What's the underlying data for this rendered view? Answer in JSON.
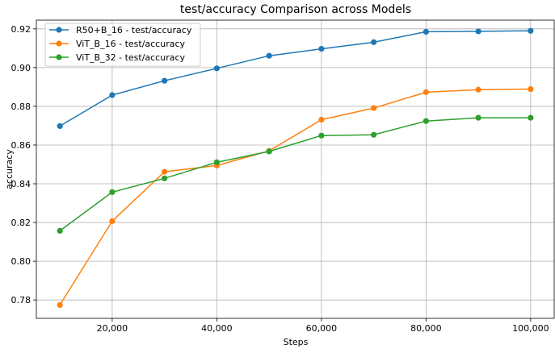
{
  "chart_data": {
    "type": "line",
    "title": "test/accuracy Comparison across Models",
    "xlabel": "Steps",
    "ylabel": "accuracy",
    "x": [
      10000,
      20000,
      30000,
      40000,
      50000,
      60000,
      70000,
      80000,
      90000,
      100000
    ],
    "xlim": [
      5500,
      104500
    ],
    "ylim": [
      0.7705,
      0.9245
    ],
    "xticks": [
      20000,
      40000,
      60000,
      80000,
      100000
    ],
    "xtick_labels": [
      "20,000",
      "40,000",
      "60,000",
      "80,000",
      "100,000"
    ],
    "yticks": [
      0.78,
      0.8,
      0.82,
      0.84,
      0.86,
      0.88,
      0.9,
      0.92
    ],
    "ytick_labels": [
      "0.78",
      "0.80",
      "0.82",
      "0.84",
      "0.86",
      "0.88",
      "0.90",
      "0.92"
    ],
    "grid": true,
    "legend_position": "top-left",
    "series": [
      {
        "name": "R50+B_16 - test/accuracy",
        "color": "#1f77b4",
        "values": [
          0.8698,
          0.8858,
          0.8932,
          0.8996,
          0.9061,
          0.9097,
          0.9131,
          0.9185,
          0.9187,
          0.919
        ]
      },
      {
        "name": "ViT_B_16 - test/accuracy",
        "color": "#ff7f0e",
        "values": [
          0.7774,
          0.8207,
          0.8462,
          0.8494,
          0.857,
          0.8731,
          0.8791,
          0.8873,
          0.8886,
          0.8889
        ]
      },
      {
        "name": "ViT_B_32 - test/accuracy",
        "color": "#2ca02c",
        "values": [
          0.8157,
          0.8357,
          0.8428,
          0.8511,
          0.8567,
          0.8649,
          0.8653,
          0.8724,
          0.8741,
          0.8741
        ]
      }
    ]
  }
}
